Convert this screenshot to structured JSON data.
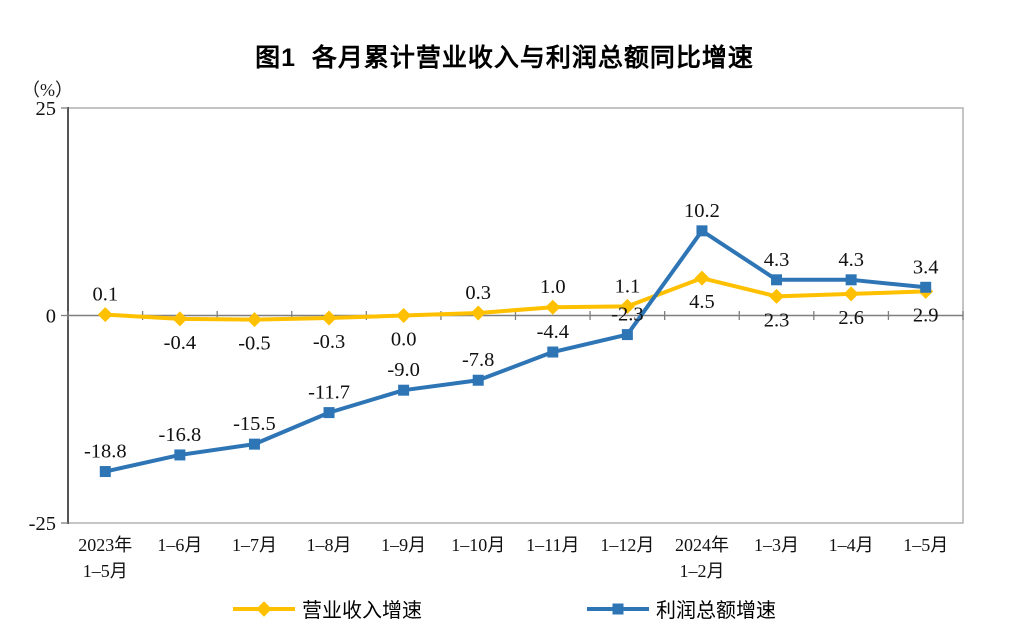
{
  "title": "图1  各月累计营业收入与利润总额同比增速",
  "y_axis_unit": "（%）",
  "colors": {
    "revenue_series": "#FFC000",
    "profit_series": "#2E75B6",
    "axis_line": "#7F7F7F",
    "plot_border": "#ACACAC",
    "label_text": "#000000"
  },
  "chart_data": {
    "type": "line",
    "title": "图1  各月累计营业收入与利润总额同比增速",
    "ylabel": "（%）",
    "ylim": [
      -25,
      25
    ],
    "yticks": [
      25,
      0,
      -25
    ],
    "grid": false,
    "legend_position": "bottom",
    "categories": [
      "2023年\n1–5月",
      "1–6月",
      "1–7月",
      "1–8月",
      "1–9月",
      "1–10月",
      "1–11月",
      "1–12月",
      "2024年\n1–2月",
      "1–3月",
      "1–4月",
      "1–5月"
    ],
    "series": [
      {
        "id": "revenue-growth",
        "name": "营业收入增速",
        "color": "#FFC000",
        "marker": "diamond",
        "values": [
          0.1,
          -0.4,
          -0.5,
          -0.3,
          0.0,
          0.3,
          1.0,
          1.1,
          4.5,
          2.3,
          2.6,
          2.9
        ],
        "label_pos": [
          "above",
          "below",
          "below",
          "below",
          "below",
          "above",
          "above",
          "above",
          "below",
          "below",
          "below",
          "below"
        ]
      },
      {
        "id": "profit-growth",
        "name": "利润总额增速",
        "color": "#2E75B6",
        "marker": "square",
        "values": [
          -18.8,
          -16.8,
          -15.5,
          -11.7,
          -9.0,
          -7.8,
          -4.4,
          -2.3,
          10.2,
          4.3,
          4.3,
          3.4
        ],
        "label_pos": [
          "above",
          "above",
          "above",
          "above",
          "above",
          "above",
          "above",
          "above",
          "above",
          "above",
          "above",
          "above"
        ]
      }
    ]
  }
}
